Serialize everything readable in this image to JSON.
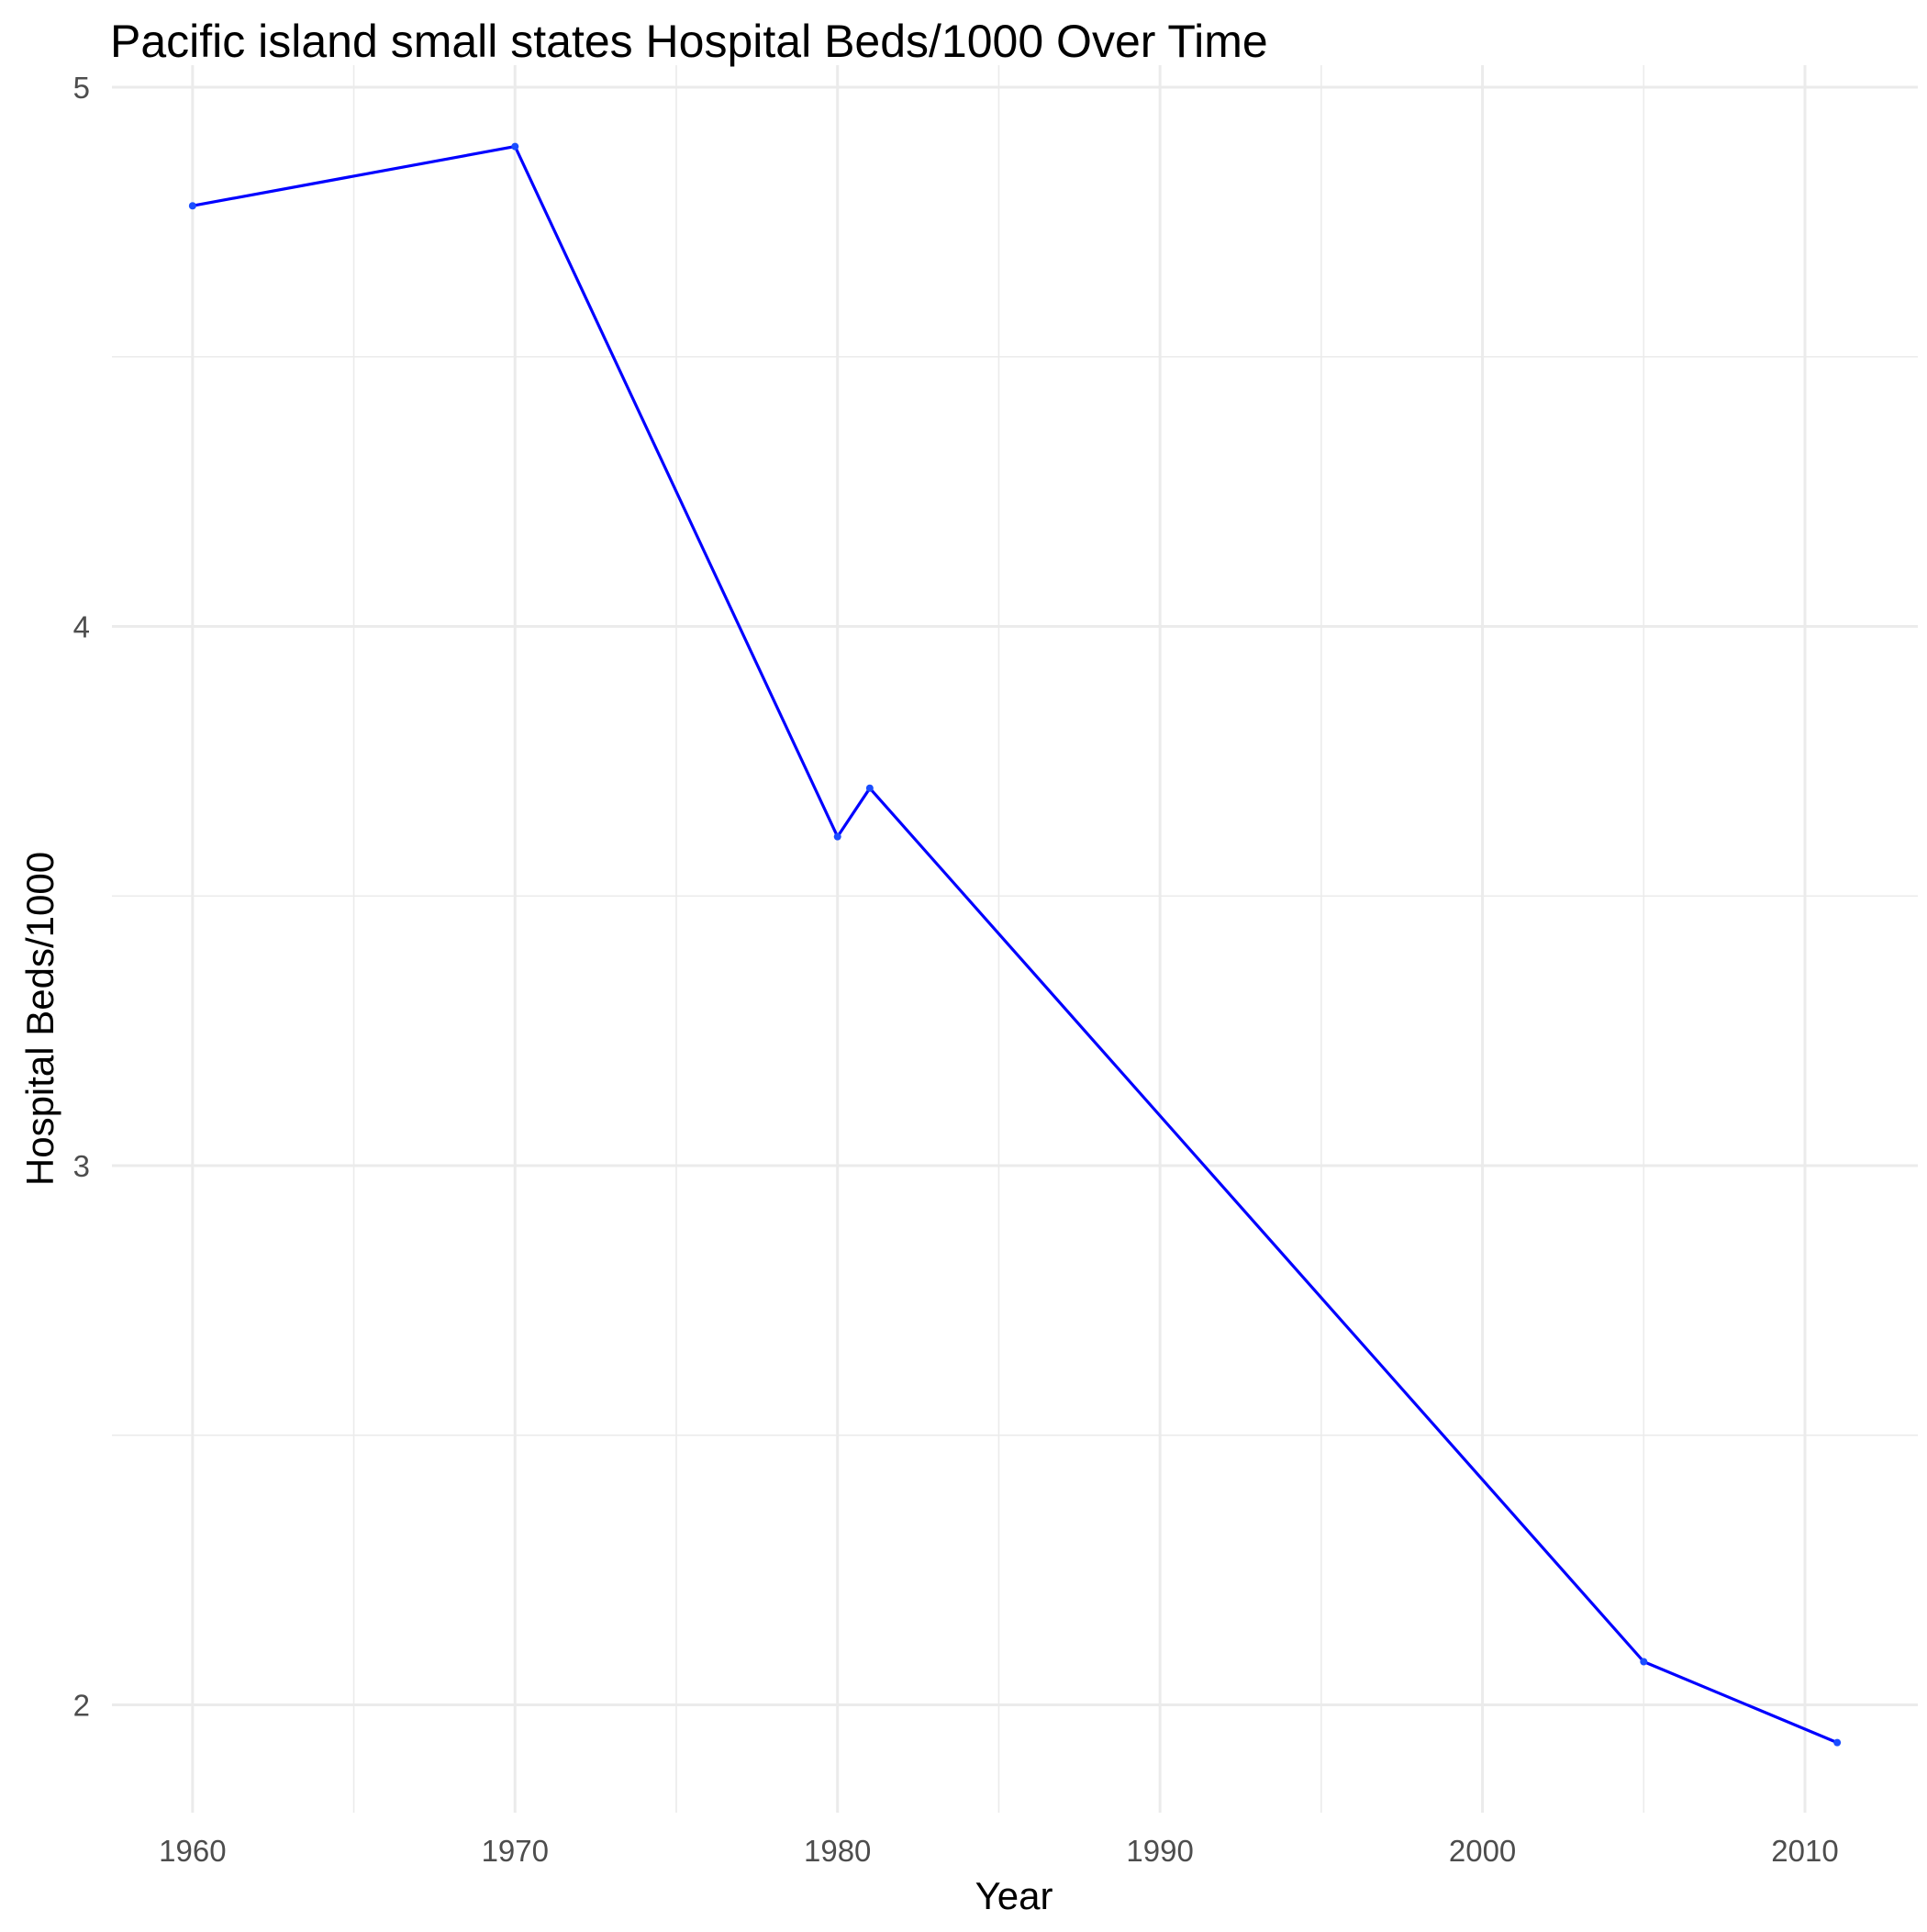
{
  "chart_data": {
    "type": "line",
    "title": "Pacific island small states Hospital Beds/1000 Over Time",
    "xlabel": "Year",
    "ylabel": "Hospital Beds/1000",
    "x": [
      1960,
      1970,
      1980,
      1981,
      2005,
      2011
    ],
    "series": [
      {
        "values": [
          4.78,
          4.89,
          3.61,
          3.7,
          2.08,
          1.93
        ]
      }
    ],
    "xlim": [
      1957.5,
      2013.5
    ],
    "ylim": [
      1.8,
      5.0
    ],
    "x_ticks": [
      1960,
      1970,
      1980,
      1990,
      2000,
      2010
    ],
    "x_tick_labels": [
      "1960",
      "1970",
      "1980",
      "1990",
      "2000",
      "2010"
    ],
    "y_ticks": [
      2,
      3,
      4,
      5
    ],
    "y_tick_labels": [
      "2",
      "3",
      "4",
      "5"
    ],
    "x_minor_ticks": [
      1965,
      1975,
      1985,
      1995,
      2005
    ],
    "y_minor_ticks": [
      2.5,
      3.5,
      4.5
    ],
    "grid": true,
    "legend": "none",
    "line_color": "#0000ff",
    "background": "#ffffff"
  }
}
